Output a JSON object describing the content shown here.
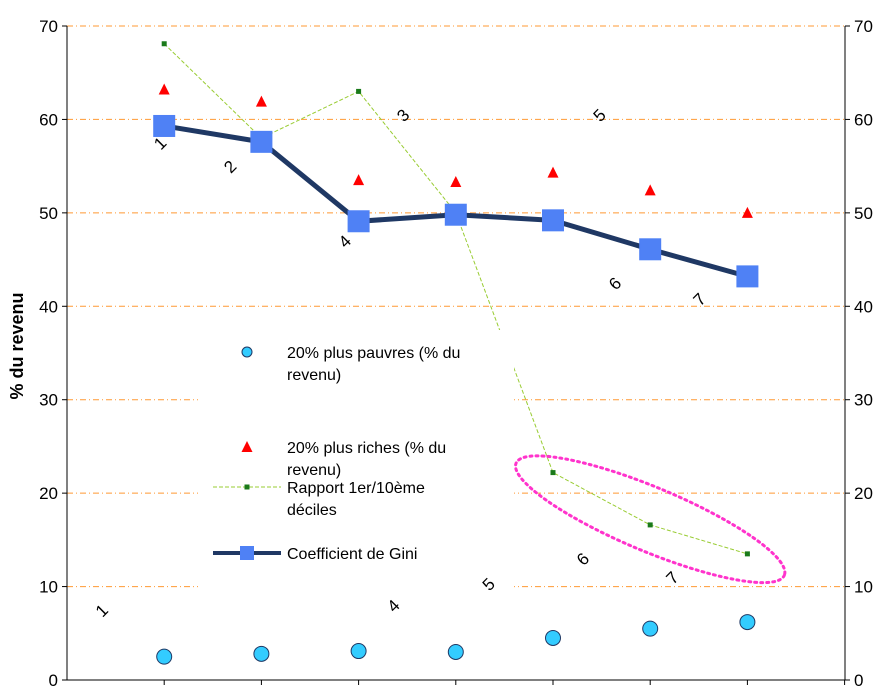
{
  "chart_data": {
    "type": "line",
    "title": "",
    "xlabel": "",
    "ylabel": "% du revenu",
    "ylim": [
      0,
      70
    ],
    "y_ticks": [
      0,
      10,
      20,
      30,
      40,
      50,
      60,
      70
    ],
    "right_axis": {
      "ylim": [
        0,
        70
      ],
      "ticks": [
        0,
        10,
        20,
        30,
        40,
        50,
        60,
        70
      ]
    },
    "grid": "horizontal dash-dot, orange",
    "x": [
      1,
      2,
      3,
      4,
      5,
      6,
      7
    ],
    "series": [
      {
        "name": "20% plus pauvres (% du revenu)",
        "marker": "circle",
        "color": "#33ccff",
        "values": [
          2.5,
          2.8,
          3.1,
          3.0,
          4.5,
          5.5,
          6.2
        ]
      },
      {
        "name": "20% plus riches (% du revenu)",
        "marker": "triangle",
        "color": "#ff0000",
        "values": [
          63.2,
          61.9,
          53.5,
          53.3,
          54.3,
          52.4,
          50.0
        ]
      },
      {
        "name": "Rapport 1er/10ème déciles",
        "marker": "small-square",
        "color": "#99cc33",
        "values": [
          68.1,
          58.0,
          63.0,
          50.0,
          22.2,
          16.6,
          13.5
        ]
      },
      {
        "name": "Coefficient de Gini",
        "marker": "square",
        "color": "#1f3864",
        "values": [
          59.3,
          57.6,
          49.1,
          49.8,
          49.2,
          46.1,
          43.2
        ]
      }
    ],
    "point_labels": [
      {
        "text": "1",
        "x": 1,
        "y": 57
      },
      {
        "text": "2",
        "x": 1.72,
        "y": 54.5
      },
      {
        "text": "3",
        "x": 3.5,
        "y": 60
      },
      {
        "text": "4",
        "x": 2.9,
        "y": 46.5
      },
      {
        "text": "5",
        "x": 5.52,
        "y": 60
      },
      {
        "text": "6",
        "x": 5.68,
        "y": 42
      },
      {
        "text": "7",
        "x": 6.55,
        "y": 40.3
      },
      {
        "text": "1",
        "x": 0.4,
        "y": 7
      },
      {
        "text": "4",
        "x": 3.4,
        "y": 7.5
      },
      {
        "text": "5",
        "x": 4.38,
        "y": 9.8
      },
      {
        "text": "6",
        "x": 5.35,
        "y": 12.5
      },
      {
        "text": "7",
        "x": 6.27,
        "y": 10.5
      }
    ],
    "legend_position": "center-left",
    "annotation": "magenta dotted ellipse around the last three Rapport points",
    "colors": {
      "grid": "#ff9933",
      "ellipse": "#ff33cc"
    }
  }
}
